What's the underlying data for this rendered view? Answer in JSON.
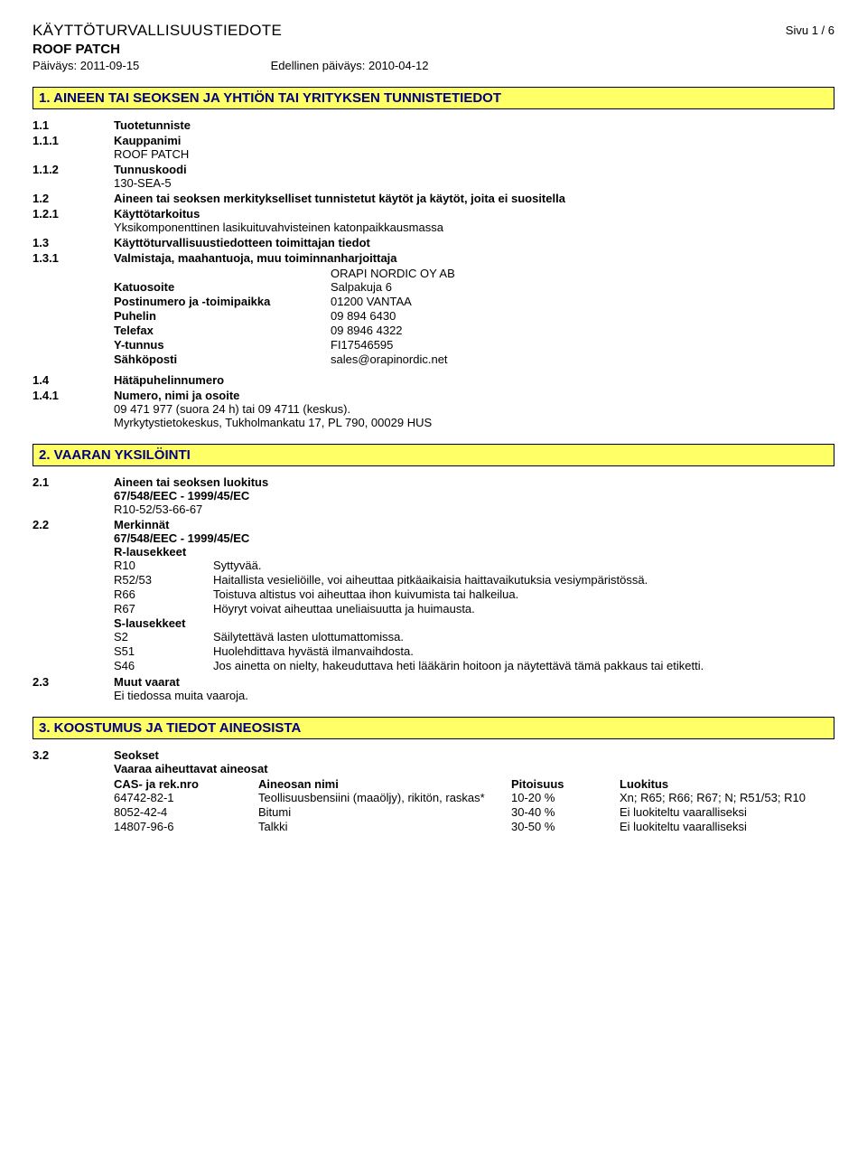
{
  "header": {
    "doc_title": "KÄYTTÖTURVALLISUUSTIEDOTE",
    "product": "ROOF PATCH",
    "date_label": "Päiväys: 2011-09-15",
    "prev_date_label": "Edellinen päiväys: 2010-04-12",
    "page": "Sivu 1 / 6"
  },
  "section1": {
    "title": "1. AINEEN TAI SEOKSEN JA YHTIÖN TAI YRITYKSEN TUNNISTETIEDOT",
    "r11_num": "1.1",
    "r11_label": "Tuotetunniste",
    "r111_num": "1.1.1",
    "r111_label": "Kauppanimi",
    "r111_val": "ROOF PATCH",
    "r112_num": "1.1.2",
    "r112_label": "Tunnuskoodi",
    "r112_val": "130-SEA-5",
    "r12_num": "1.2",
    "r12_label": "Aineen tai seoksen merkitykselliset tunnistetut käytöt ja käytöt, joita ei suositella",
    "r121_num": "1.2.1",
    "r121_label": "Käyttötarkoitus",
    "r121_val": "Yksikomponenttinen lasikuituvahvisteinen katonpaikkausmassa",
    "r13_num": "1.3",
    "r13_label": "Käyttöturvallisuustiedotteen toimittajan tiedot",
    "r131_num": "1.3.1",
    "r131_label": "Valmistaja, maahantuoja, muu toiminnanharjoittaja",
    "r131_val": "ORAPI NORDIC OY AB",
    "kv": {
      "katuosoite_k": "Katuosoite",
      "katuosoite_v": "Salpakuja 6",
      "postinum_k": "Postinumero ja -toimipaikka",
      "postinum_v": "01200 VANTAA",
      "puhelin_k": "Puhelin",
      "puhelin_v": "09 894 6430",
      "telefax_k": "Telefax",
      "telefax_v": "09 8946 4322",
      "ytunnus_k": "Y-tunnus",
      "ytunnus_v": "FI17546595",
      "email_k": "Sähköposti",
      "email_v": "sales@orapinordic.net"
    },
    "r14_num": "1.4",
    "r14_label": "Hätäpuhelinnumero",
    "r141_num": "1.4.1",
    "r141_label": "Numero, nimi ja osoite",
    "r141_val1": "09 471 977 (suora 24 h) tai 09 4711 (keskus).",
    "r141_val2": "Myrkytystietokeskus, Tukholmankatu 17, PL 790, 00029 HUS"
  },
  "section2": {
    "title": "2. VAARAN YKSILÖINTI",
    "r21_num": "2.1",
    "r21_label": "Aineen tai seoksen luokitus",
    "r21_l2": "67/548/EEC - 1999/45/EC",
    "r21_l3": "R10-52/53-66-67",
    "r22_num": "2.2",
    "r22_label": "Merkinnät",
    "r22_l2": "67/548/EEC - 1999/45/EC",
    "r_label": "R-lausekkeet",
    "r_phrases": [
      {
        "code": "R10",
        "text": "Syttyvää."
      },
      {
        "code": "R52/53",
        "text": "Haitallista vesieliöille, voi aiheuttaa pitkäaikaisia haittavaikutuksia vesiympäristössä."
      },
      {
        "code": "R66",
        "text": "Toistuva altistus voi aiheuttaa ihon kuivumista tai halkeilua."
      },
      {
        "code": "R67",
        "text": "Höyryt voivat aiheuttaa uneliaisuutta ja huimausta."
      }
    ],
    "s_label": "S-lausekkeet",
    "s_phrases": [
      {
        "code": "S2",
        "text": "Säilytettävä lasten ulottumattomissa."
      },
      {
        "code": "S51",
        "text": "Huolehdittava hyvästä ilmanvaihdosta."
      },
      {
        "code": "S46",
        "text": "Jos ainetta on nielty, hakeuduttava heti lääkärin hoitoon ja näytettävä tämä pakkaus tai etiketti."
      }
    ],
    "r23_num": "2.3",
    "r23_label": "Muut vaarat",
    "r23_val": "Ei tiedossa muita vaaroja."
  },
  "section3": {
    "title": "3. KOOSTUMUS JA TIEDOT AINEOSISTA",
    "r32_num": "3.2",
    "r32_label": "Seokset",
    "r32_sub": "Vaaraa aiheuttavat aineosat",
    "headers": {
      "cas": "CAS- ja rek.nro",
      "name": "Aineosan nimi",
      "conc": "Pitoisuus",
      "class": "Luokitus"
    },
    "rows": [
      {
        "cas": "64742-82-1",
        "name": "Teollisuusbensiini (maaöljy), rikitön, raskas*",
        "conc": "10-20 %",
        "class": "Xn; R65; R66; R67; N; R51/53; R10"
      },
      {
        "cas": "8052-42-4",
        "name": "Bitumi",
        "conc": "30-40 %",
        "class": "Ei luokiteltu vaaralliseksi"
      },
      {
        "cas": "14807-96-6",
        "name": "Talkki",
        "conc": "30-50 %",
        "class": "Ei luokiteltu vaaralliseksi"
      }
    ]
  }
}
